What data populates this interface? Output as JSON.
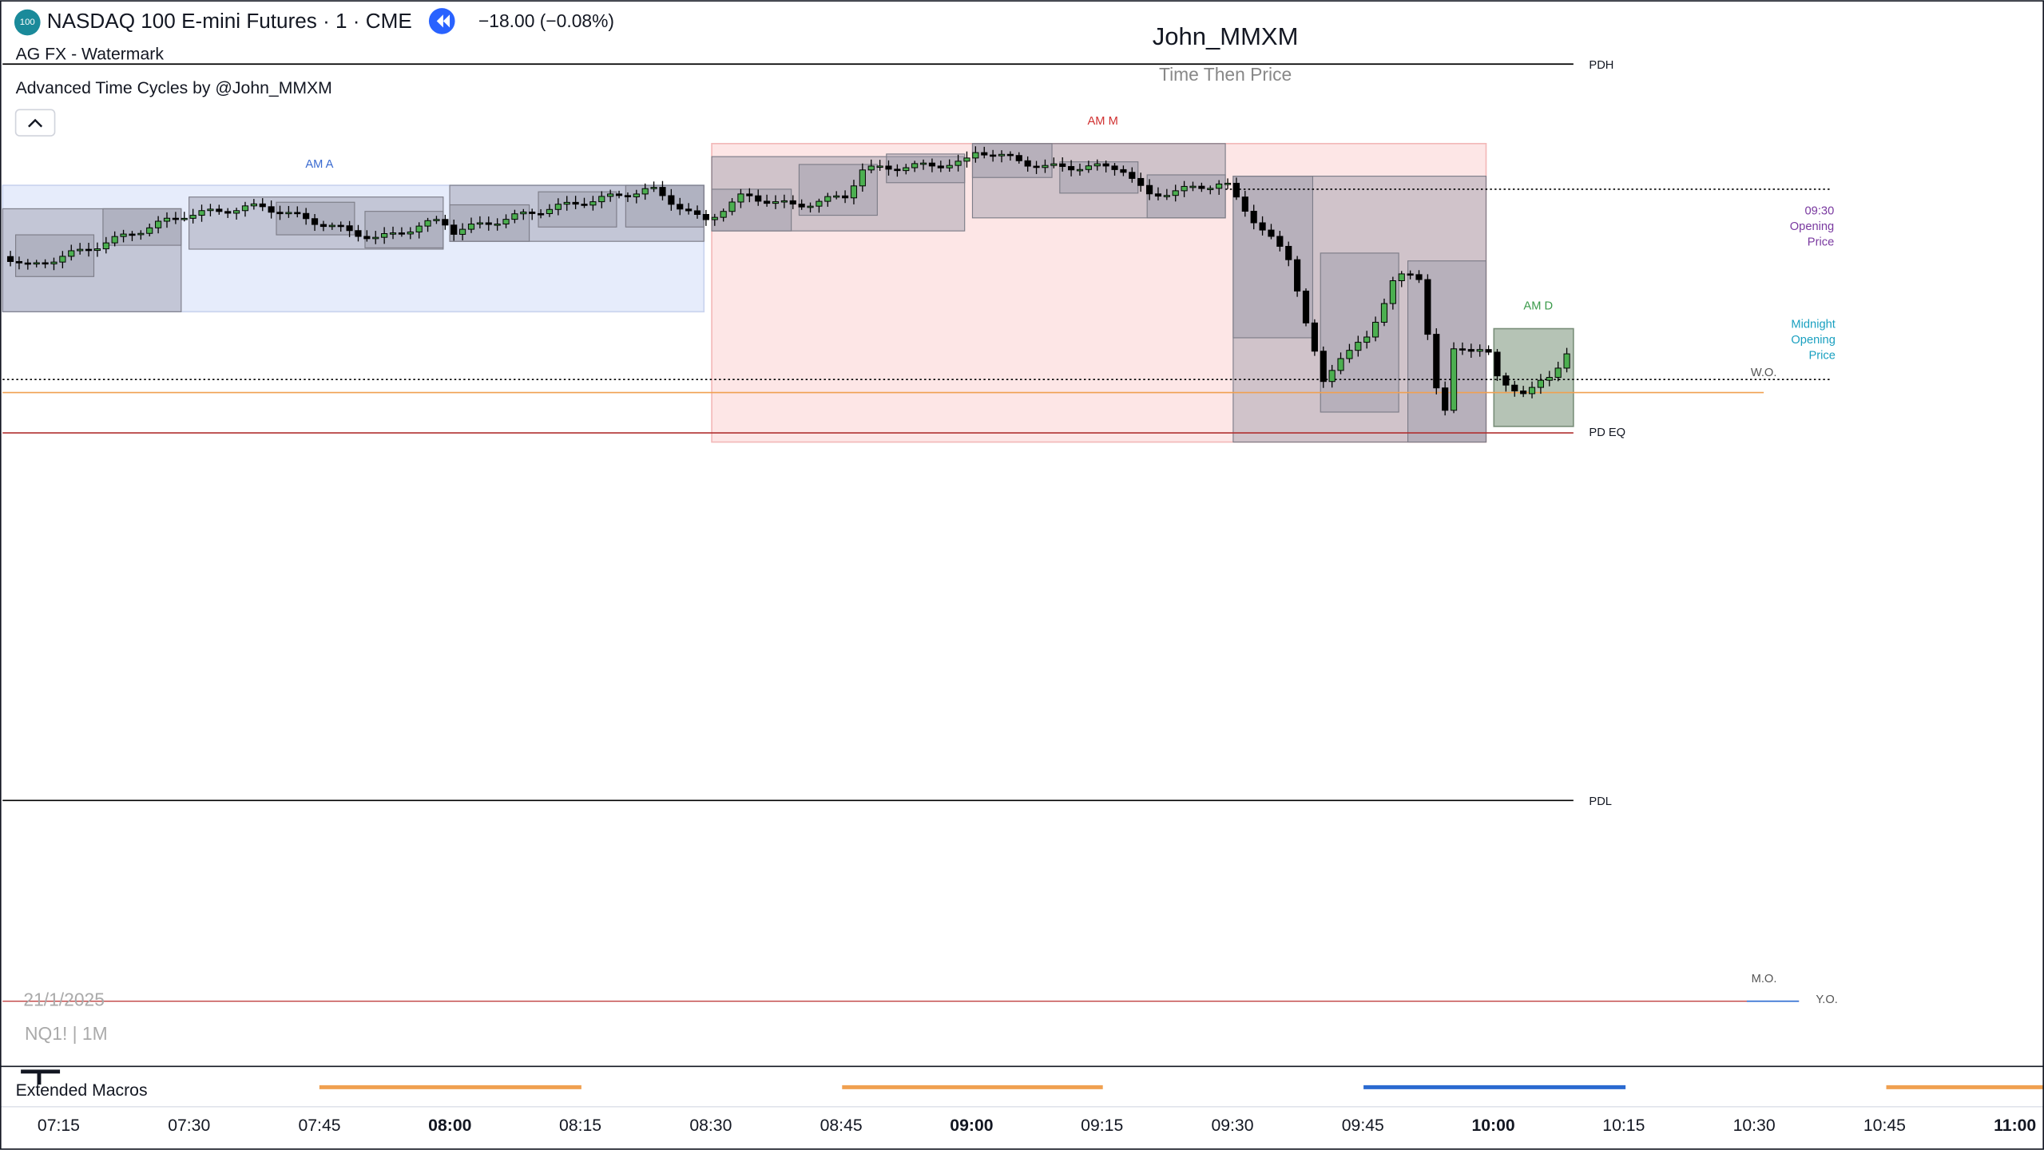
{
  "header": {
    "symbol_badge": "100",
    "symbol": "NASDAQ 100 E-mini Futures · 1 · CME",
    "change": "−18.00 (−0.08%)",
    "indicator_1": "AG FX - Watermark",
    "indicator_2": "Advanced Time Cycles by @John_MMXM"
  },
  "watermark": {
    "title": "John_MMXM",
    "subtitle": "Time Then Price",
    "date": "21/1/2025",
    "symbol": "NQ1! | 1M"
  },
  "cycle_labels": [
    "AM A",
    "AM M",
    "AM D"
  ],
  "level_labels": {
    "pdh": "PDH",
    "pd_eq": "PD EQ",
    "pdl": "PDL",
    "wo": "W.O.",
    "mo": "M.O.",
    "yo": "Y.O.",
    "opening_930": [
      "09:30",
      "Opening",
      "Price"
    ],
    "midnight": [
      "Midnight",
      "Opening",
      "Price"
    ]
  },
  "pane": {
    "title": "Extended Macros"
  },
  "time_axis": [
    "07:15",
    "07:30",
    "07:45",
    "08:00",
    "08:15",
    "08:30",
    "08:45",
    "09:00",
    "09:15",
    "09:30",
    "09:45",
    "10:00",
    "10:15",
    "10:30",
    "10:45",
    "11:00"
  ]
}
